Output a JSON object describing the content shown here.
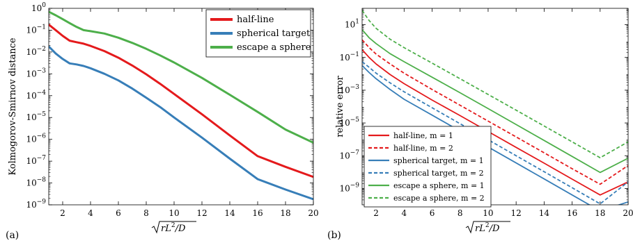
{
  "chart_data": [
    {
      "panel": "(a)",
      "type": "line",
      "xlabel": "√(rL²/D)",
      "ylabel": "Kolmogorov-Smirnov distance",
      "xlim": [
        1,
        20
      ],
      "ylim": [
        1e-09,
        1
      ],
      "yscale": "log",
      "grid": false,
      "legend_position": "top-right",
      "x_ticks": [
        2,
        4,
        6,
        8,
        10,
        12,
        14,
        16,
        18,
        20
      ],
      "x_tick_labels": [
        "2",
        "4",
        "6",
        "8",
        "10",
        "12",
        "14",
        "16",
        "18",
        "20"
      ],
      "y_ticks": [
        1e-09,
        1e-08,
        1e-07,
        1e-06,
        1e-05,
        0.0001,
        0.001,
        0.01,
        0.1,
        1
      ],
      "y_tick_labels": [
        "10",
        "10",
        "10",
        "10",
        "10",
        "10",
        "10",
        "10",
        "10",
        "10"
      ],
      "y_tick_exponents": [
        "−9",
        "−8",
        "−7",
        "−6",
        "−5",
        "−4",
        "−3",
        "−2",
        "−1",
        "0"
      ],
      "series": [
        {
          "name": "half-line",
          "color": "#e41a1c",
          "dash": "solid",
          "x": [
            1,
            1.5,
            2,
            2.5,
            3,
            3.5,
            4,
            5,
            6,
            7,
            8,
            9,
            10,
            12,
            14,
            16,
            18,
            20
          ],
          "y": [
            0.18,
            0.1,
            0.055,
            0.033,
            0.028,
            0.024,
            0.019,
            0.011,
            0.0055,
            0.0024,
            0.00095,
            0.00035,
            0.00012,
            1.4e-05,
            1.5e-06,
            1.7e-07,
            5.5e-08,
            1.9e-08
          ]
        },
        {
          "name": "spherical target",
          "color": "#377eb8",
          "dash": "solid",
          "x": [
            1,
            1.5,
            2,
            2.5,
            3,
            3.5,
            4,
            5,
            6,
            7,
            8,
            9,
            10,
            12,
            14,
            16,
            18,
            20
          ],
          "y": [
            0.018,
            0.0085,
            0.0048,
            0.003,
            0.0027,
            0.0023,
            0.0018,
            0.001,
            0.0005,
            0.00021,
            8e-05,
            3e-05,
            1e-05,
            1.2e-06,
            1.3e-07,
            1.5e-08,
            5e-09,
            1.8e-09
          ]
        },
        {
          "name": "escape a sphere",
          "color": "#4daf4a",
          "dash": "solid",
          "x": [
            1,
            1.5,
            2,
            2.5,
            3,
            3.5,
            4,
            5,
            6,
            7,
            8,
            9,
            10,
            12,
            14,
            16,
            18,
            20
          ],
          "y": [
            0.7,
            0.48,
            0.32,
            0.21,
            0.14,
            0.1,
            0.09,
            0.07,
            0.045,
            0.026,
            0.014,
            0.007,
            0.0033,
            0.00065,
            0.00011,
            1.8e-05,
            2.8e-06,
            7e-07
          ]
        }
      ]
    },
    {
      "panel": "(b)",
      "type": "line",
      "xlabel": "√(rL²/D)",
      "ylabel": "relative error",
      "xlim": [
        1,
        20
      ],
      "ylim": [
        1e-10,
        100
      ],
      "yscale": "log",
      "grid": false,
      "legend_position": "bottom-left",
      "x_ticks": [
        2,
        4,
        6,
        8,
        10,
        12,
        14,
        16,
        18,
        20
      ],
      "x_tick_labels": [
        "2",
        "4",
        "6",
        "8",
        "10",
        "12",
        "14",
        "16",
        "18",
        "20"
      ],
      "y_ticks": [
        1e-09,
        1e-07,
        1e-05,
        0.001,
        0.1,
        10
      ],
      "y_tick_labels": [
        "10",
        "10",
        "10",
        "10",
        "10",
        "10"
      ],
      "y_tick_exponents": [
        "−9",
        "−7",
        "−5",
        "−3",
        "−1",
        "1"
      ],
      "series": [
        {
          "name": "half-line, m = 1",
          "color": "#e41a1c",
          "dash": "solid",
          "x": [
            1,
            1.5,
            2,
            3,
            4,
            6,
            8,
            10,
            12,
            14,
            16,
            18,
            20
          ],
          "y": [
            0.3,
            0.1,
            0.04,
            0.009,
            0.0025,
            0.00025,
            2.8e-05,
            3e-06,
            3.2e-07,
            3.5e-08,
            3.7e-09,
            4e-10,
            2.5e-09
          ]
        },
        {
          "name": "half-line, m = 2",
          "color": "#e41a1c",
          "dash": "dashed",
          "x": [
            1,
            1.5,
            2,
            3,
            4,
            6,
            8,
            10,
            12,
            14,
            16,
            18,
            20
          ],
          "y": [
            1.2,
            0.4,
            0.16,
            0.04,
            0.011,
            0.0011,
            0.00012,
            1.3e-05,
            1.4e-06,
            1.5e-07,
            1.6e-08,
            1.8e-09,
            2.5e-08
          ]
        },
        {
          "name": "spherical target, m = 1",
          "color": "#377eb8",
          "dash": "solid",
          "x": [
            1,
            1.5,
            2,
            3,
            4,
            6,
            8,
            10,
            12,
            14,
            16,
            18,
            20
          ],
          "y": [
            0.032,
            0.012,
            0.005,
            0.0011,
            0.00028,
            3e-05,
            3.2e-06,
            3.4e-07,
            3.6e-08,
            3.8e-09,
            4e-10,
            4.2e-11,
            1.5e-10
          ]
        },
        {
          "name": "spherical target, m = 2",
          "color": "#377eb8",
          "dash": "dashed",
          "x": [
            1,
            1.5,
            2,
            3,
            4,
            6,
            8,
            10,
            12,
            14,
            16,
            18,
            20
          ],
          "y": [
            0.055,
            0.025,
            0.011,
            0.0028,
            0.0008,
            8.5e-05,
            9e-06,
            9.5e-07,
            1e-07,
            1.05e-08,
            1.1e-09,
            1.15e-10,
            2.5e-09
          ]
        },
        {
          "name": "escape a sphere, m = 1",
          "color": "#4daf4a",
          "dash": "solid",
          "x": [
            1,
            1.5,
            2,
            3,
            4,
            6,
            8,
            10,
            12,
            14,
            16,
            18,
            20
          ],
          "y": [
            5.0,
            1.6,
            0.7,
            0.17,
            0.055,
            0.0062,
            0.0007,
            7.5e-05,
            8e-06,
            8.5e-07,
            9e-08,
            9.5e-09,
            7e-08
          ]
        },
        {
          "name": "escape a sphere, m = 2",
          "color": "#4daf4a",
          "dash": "dashed",
          "x": [
            1,
            1.5,
            2,
            3,
            4,
            6,
            8,
            10,
            12,
            14,
            16,
            18,
            20
          ],
          "y": [
            75,
            18,
            6.0,
            1.3,
            0.4,
            0.045,
            0.005,
            0.00055,
            6e-05,
            6.5e-06,
            7e-07,
            7.5e-08,
            7e-07
          ]
        }
      ]
    }
  ]
}
